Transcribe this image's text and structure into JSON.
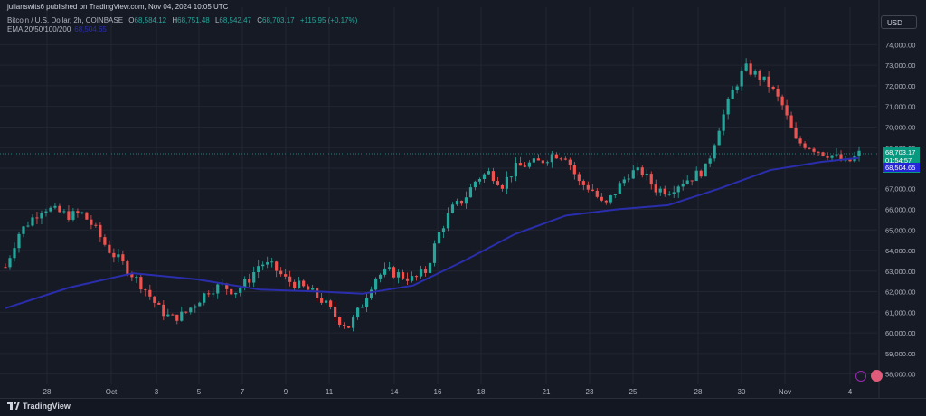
{
  "header": {
    "publisher": "julianswits6 published on TradingView.com, Nov 04, 2024 10:05 UTC",
    "symbol": "Bitcoin / U.S. Dollar, 2h, COINBASE",
    "open_label": "O",
    "open": "68,584.12",
    "high_label": "H",
    "high": "68,751.48",
    "low_label": "L",
    "low": "68,542.47",
    "close_label": "C",
    "close": "68,703.17",
    "change": "+115.95 (+0.17%)",
    "ema_label": "EMA 20/50/100/200",
    "ema_value": "68,504.65"
  },
  "currency": "USD",
  "price_tags": {
    "last": "68,703.17",
    "countdown": "01:54:57",
    "ema": "68,504.65"
  },
  "footer": {
    "brand": "TradingView"
  },
  "colors": {
    "up": "#26a69a",
    "down": "#ef5350",
    "ema": "#2a2eac",
    "background": "#161a25",
    "grid": "#232632"
  },
  "icons": [
    "lightning-icon",
    "flag-icon",
    "tradingview-logo-icon"
  ],
  "chart_data": {
    "type": "candlestick",
    "timeframe": "2h",
    "y_axis": {
      "min": 57500,
      "max": 74500,
      "ticks": [
        "74,000.00",
        "73,000.00",
        "72,000.00",
        "71,000.00",
        "70,000.00",
        "69,000.00",
        "68,000.00",
        "67,000.00",
        "66,000.00",
        "65,000.00",
        "64,000.00",
        "63,000.00",
        "62,000.00",
        "61,000.00",
        "60,000.00",
        "59,000.00",
        "58,000.00"
      ]
    },
    "x_axis": {
      "ticks": [
        "28",
        "Oct",
        "3",
        "5",
        "7",
        "9",
        "11",
        "14",
        "16",
        "18",
        "21",
        "23",
        "25",
        "28",
        "30",
        "Nov",
        "4"
      ]
    },
    "price_path": [
      [
        0,
        63200
      ],
      [
        1,
        64800
      ],
      [
        2,
        65500
      ],
      [
        3,
        66100
      ],
      [
        4,
        65900
      ],
      [
        5,
        65700
      ],
      [
        6,
        65800
      ],
      [
        7,
        65100
      ],
      [
        8,
        64100
      ],
      [
        9,
        63500
      ],
      [
        10,
        62800
      ],
      [
        11,
        62100
      ],
      [
        12,
        61200
      ],
      [
        13,
        60700
      ],
      [
        14,
        60900
      ],
      [
        15,
        61500
      ],
      [
        16,
        62100
      ],
      [
        17,
        62300
      ],
      [
        18,
        62000
      ],
      [
        19,
        62500
      ],
      [
        20,
        63400
      ],
      [
        21,
        63200
      ],
      [
        22,
        62600
      ],
      [
        23,
        62300
      ],
      [
        24,
        62000
      ],
      [
        25,
        61500
      ],
      [
        26,
        60700
      ],
      [
        27,
        60300
      ],
      [
        28,
        61400
      ],
      [
        29,
        62700
      ],
      [
        30,
        63000
      ],
      [
        31,
        62800
      ],
      [
        32,
        62600
      ],
      [
        33,
        63000
      ],
      [
        34,
        64800
      ],
      [
        35,
        66000
      ],
      [
        36,
        66500
      ],
      [
        37,
        67500
      ],
      [
        38,
        67800
      ],
      [
        39,
        67200
      ],
      [
        40,
        68000
      ],
      [
        41,
        68200
      ],
      [
        42,
        68300
      ],
      [
        43,
        68700
      ],
      [
        44,
        68600
      ],
      [
        45,
        67300
      ],
      [
        46,
        67000
      ],
      [
        47,
        66100
      ],
      [
        48,
        67000
      ],
      [
        49,
        67800
      ],
      [
        50,
        67800
      ],
      [
        51,
        67000
      ],
      [
        52,
        66900
      ],
      [
        53,
        67300
      ],
      [
        54,
        67600
      ],
      [
        55,
        68000
      ],
      [
        56,
        70000
      ],
      [
        57,
        71600
      ],
      [
        58,
        72900
      ],
      [
        59,
        72500
      ],
      [
        60,
        72000
      ],
      [
        61,
        71000
      ],
      [
        62,
        69300
      ],
      [
        63,
        69100
      ],
      [
        64,
        68800
      ],
      [
        65,
        68600
      ],
      [
        66,
        68200
      ],
      [
        67,
        68700
      ]
    ],
    "ema_path": [
      [
        0,
        61200
      ],
      [
        5,
        62200
      ],
      [
        10,
        62900
      ],
      [
        15,
        62600
      ],
      [
        20,
        62100
      ],
      [
        25,
        62000
      ],
      [
        28,
        61900
      ],
      [
        32,
        62300
      ],
      [
        36,
        63500
      ],
      [
        40,
        64800
      ],
      [
        44,
        65700
      ],
      [
        48,
        66000
      ],
      [
        52,
        66200
      ],
      [
        56,
        67000
      ],
      [
        60,
        67900
      ],
      [
        64,
        68300
      ],
      [
        67,
        68500
      ]
    ],
    "last_price": 68703.17,
    "ema_last": 68504.65
  }
}
